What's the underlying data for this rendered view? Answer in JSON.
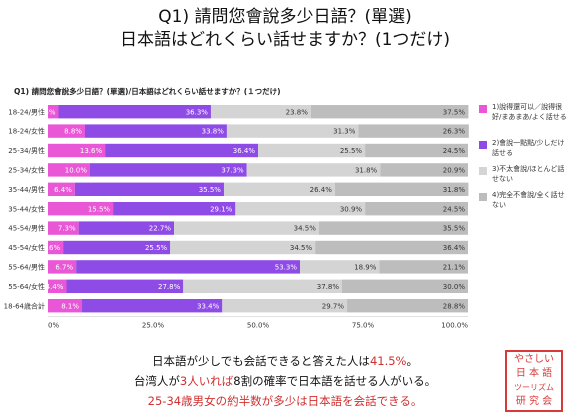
{
  "header": {
    "title_line1": "Q1) 請問您會說多少日語？(單選)",
    "title_line2": "日本語はどれくらい話せますか？(1つだけ)"
  },
  "summary": {
    "line1_pre": "日本語が少しでも会話できると答えた人は",
    "line1_value": "41.5%",
    "line1_post": "。",
    "line2_pre": "台湾人が",
    "line2_red1": "3人いれば",
    "line2_mid": "8割の確率で日本語を話せる人がいる。",
    "line3": "25-34歳男女の約半数が多少は日本語を会話できる。"
  },
  "stamp": {
    "lines": [
      "やさしい",
      "日 本 語",
      "ツーリズム",
      "研 究 会"
    ]
  },
  "colors": {
    "series1": "#e957d6",
    "series2": "#8e4be6",
    "series3": "#d4d4d4",
    "series4": "#bdbdbd",
    "highlight": "#d03030",
    "stamp": "#d83a3a"
  },
  "chart_data": {
    "type": "bar",
    "orientation": "horizontal",
    "stacked": true,
    "percent": true,
    "title": "Q1) 請問您會說多少日語？(單選)/日本語はどれくらい話せますか？(１つだけ)",
    "categories": [
      "18-24/男性",
      "18-24/女性",
      "25-34/男性",
      "25-34/女性",
      "35-44/男性",
      "35-44/女性",
      "45-54/男性",
      "45-54/女性",
      "55-64/男性",
      "55-64/女性",
      "18-64歳合計"
    ],
    "series": [
      {
        "name": "1)說得還可以／說得很好/まあまあ/よく話せる",
        "values": [
          2.5,
          8.8,
          13.6,
          10.0,
          6.4,
          15.5,
          7.3,
          3.6,
          6.7,
          4.4,
          8.1
        ],
        "labels": [
          "2.5%",
          "8.8%",
          "13.6%",
          "10.0%",
          "6.4%",
          "15.5%",
          "7.3%",
          "3.6%",
          "6.7%",
          "4.4%",
          "8.1%"
        ]
      },
      {
        "name": "2)會說一點點/少しだけ話せる",
        "values": [
          36.3,
          33.8,
          36.4,
          37.3,
          35.5,
          29.1,
          22.7,
          25.5,
          53.3,
          27.8,
          33.4
        ],
        "labels": [
          "36.3%",
          "33.8%",
          "36.4%",
          "37.3%",
          "35.5%",
          "29.1%",
          "22.7%",
          "25.5%",
          "53.3%",
          "27.8%",
          "33.4%"
        ]
      },
      {
        "name": "3)不太會說/ほとんど話せない",
        "values": [
          23.8,
          31.3,
          25.5,
          31.8,
          26.4,
          30.9,
          34.5,
          34.5,
          18.9,
          37.8,
          29.7
        ],
        "labels": [
          "23.8%",
          "31.3%",
          "25.5%",
          "31.8%",
          "26.4%",
          "30.9%",
          "34.5%",
          "34.5%",
          "18.9%",
          "37.8%",
          "29.7%"
        ]
      },
      {
        "name": "4)完全不會說/全く話せない",
        "values": [
          37.5,
          26.3,
          24.5,
          20.9,
          31.8,
          24.5,
          35.5,
          36.4,
          21.1,
          30.0,
          28.8
        ],
        "labels": [
          "37.5%",
          "26.3%",
          "24.5%",
          "20.9%",
          "31.8%",
          "24.5%",
          "35.5%",
          "36.4%",
          "21.1%",
          "30.0%",
          "28.8%"
        ]
      }
    ],
    "xlim": [
      0,
      100
    ],
    "x_ticks": [
      "0%",
      "25.0%",
      "50.0%",
      "75.0%",
      "100.0%"
    ],
    "grid": false,
    "legend": "right"
  }
}
